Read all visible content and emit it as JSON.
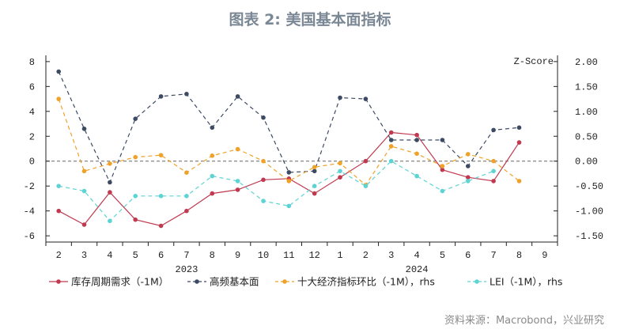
{
  "title": "图表 2:  美国基本面指标",
  "source": "资料来源：Macrobond，兴业研究",
  "chart_data": {
    "type": "line",
    "categories": [
      "2",
      "3",
      "4",
      "5",
      "6",
      "7",
      "8",
      "9",
      "10",
      "11",
      "12",
      "1",
      "2",
      "3",
      "4",
      "5",
      "6",
      "7",
      "8",
      "9"
    ],
    "year_labels": [
      {
        "label": "2023",
        "category_index": 5
      },
      {
        "label": "2024",
        "category_index": 14
      }
    ],
    "left_axis": {
      "ylim": [
        -6.5,
        8.5
      ],
      "ticks": [
        8,
        6,
        4,
        2,
        0,
        -2,
        -4,
        -6
      ]
    },
    "right_axis": {
      "label": "Z-Score",
      "ylim": [
        -1.625,
        2.125
      ],
      "ticks": [
        "2.00",
        "1.50",
        "1.00",
        "0.50",
        "0.00",
        "-0.50",
        "-1.00",
        "-1.50"
      ]
    },
    "zero_line": true,
    "legend_position": "bottom",
    "series": [
      {
        "name": "库存周期需求（-1M）",
        "axis": "left",
        "color": "#c0394f",
        "dash": "solid",
        "values": [
          -4.0,
          -5.1,
          -2.5,
          -4.7,
          -5.2,
          -4.0,
          -2.6,
          -2.3,
          -1.5,
          -1.4,
          -2.6,
          -1.3,
          0.0,
          2.3,
          2.1,
          -0.7,
          -1.3,
          -1.6,
          1.5,
          null
        ]
      },
      {
        "name": "高频基本面",
        "axis": "left",
        "color": "#3d4a63",
        "dash": "dashed",
        "values": [
          7.2,
          2.6,
          -1.7,
          3.4,
          5.2,
          5.4,
          2.7,
          5.2,
          3.5,
          -0.9,
          -0.8,
          5.1,
          5.0,
          1.7,
          1.7,
          1.7,
          -0.4,
          2.5,
          2.7,
          null
        ]
      },
      {
        "name": "十大经济指标环比（-1M），rhs",
        "axis": "right",
        "color": "#efa22a",
        "dash": "dashed",
        "values": [
          1.25,
          -0.2,
          -0.05,
          0.08,
          0.12,
          -0.23,
          0.11,
          0.24,
          0.0,
          -0.4,
          -0.12,
          -0.04,
          -0.48,
          0.3,
          0.15,
          -0.1,
          0.14,
          0.0,
          -0.4,
          null
        ]
      },
      {
        "name": "LEI（-1M），rhs",
        "axis": "right",
        "color": "#5ed3d3",
        "dash": "dashed",
        "values": [
          -0.5,
          -0.6,
          -1.2,
          -0.7,
          -0.7,
          -0.7,
          -0.3,
          -0.4,
          -0.8,
          -0.9,
          -0.5,
          -0.2,
          -0.5,
          0.0,
          -0.3,
          -0.6,
          -0.4,
          -0.2,
          null,
          null
        ]
      }
    ]
  }
}
